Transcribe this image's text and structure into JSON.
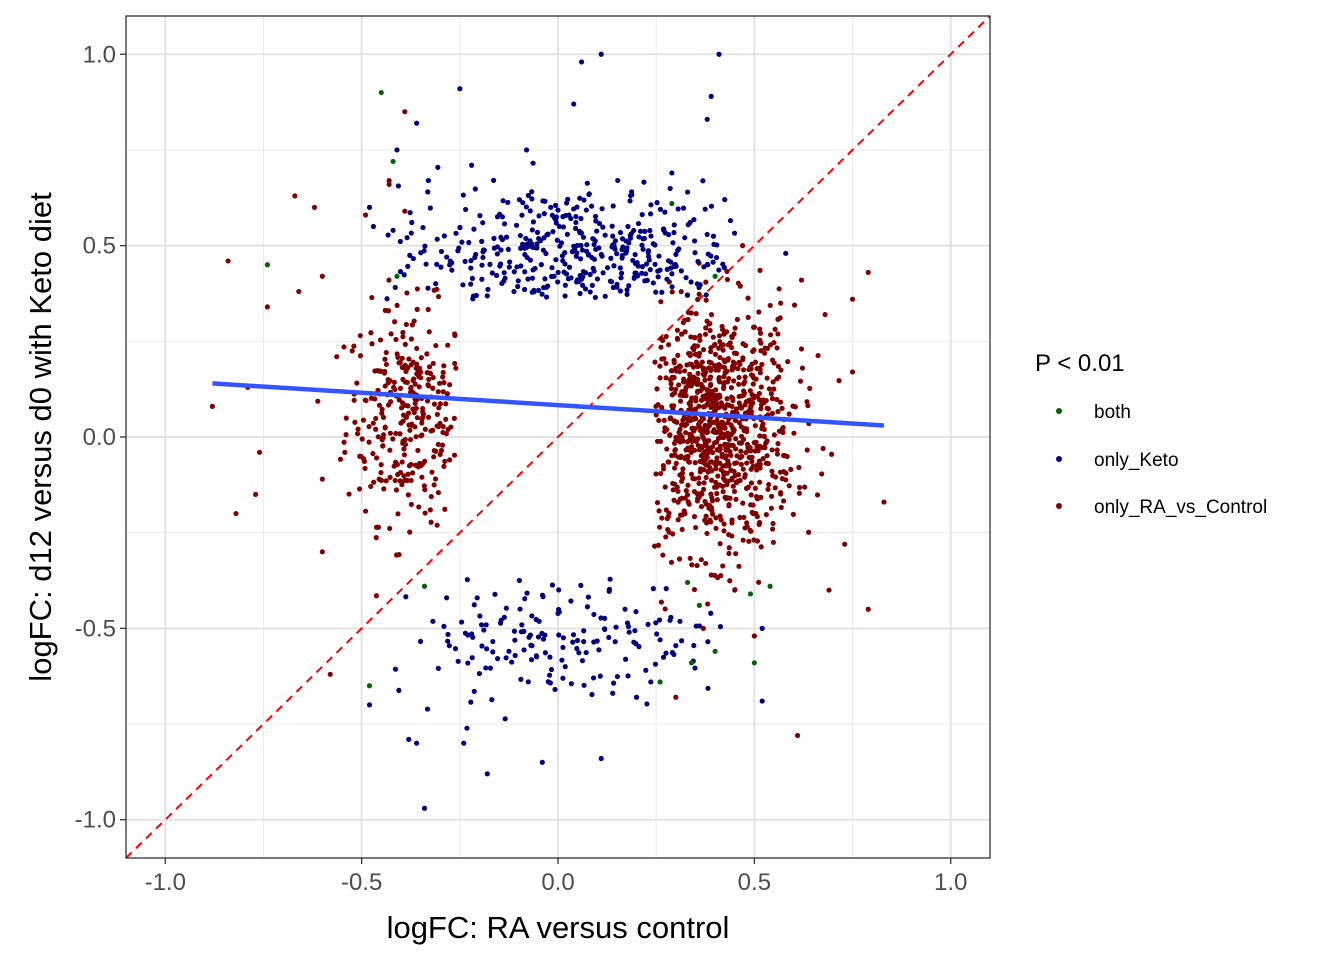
{
  "chart_data": {
    "type": "scatter",
    "xlabel": "logFC: RA versus control",
    "ylabel": "logFC: d12 versus d0 with Keto diet",
    "xlim": [
      -1.1,
      1.1
    ],
    "ylim": [
      -1.1,
      1.1
    ],
    "x_ticks": [
      -1.0,
      -0.5,
      0.0,
      0.5,
      1.0
    ],
    "y_ticks": [
      -1.0,
      -0.5,
      0.0,
      0.5,
      1.0
    ],
    "x_tick_labels": [
      "-1.0",
      "-0.5",
      "0.0",
      "0.5",
      "1.0"
    ],
    "y_tick_labels": [
      "-1.0",
      "-0.5",
      "0.0",
      "0.5",
      "1.0"
    ],
    "grid": true,
    "legend": {
      "title": "P < 0.01",
      "placement": "right",
      "entries": [
        {
          "name": "both",
          "color": "#006400"
        },
        {
          "name": "only_Keto",
          "color": "#000080"
        },
        {
          "name": "only_RA_vs_Control",
          "color": "#800000"
        }
      ]
    },
    "series": [
      {
        "name": "both",
        "color": "#006400",
        "points": [
          [
            -0.45,
            0.9
          ],
          [
            -0.42,
            0.72
          ],
          [
            -0.74,
            0.45
          ],
          [
            -0.41,
            0.42
          ],
          [
            0.29,
            0.61
          ],
          [
            0.4,
            0.42
          ],
          [
            -0.48,
            -0.65
          ],
          [
            -0.34,
            -0.39
          ],
          [
            0.33,
            -0.38
          ],
          [
            0.36,
            -0.44
          ],
          [
            0.54,
            -0.39
          ],
          [
            0.49,
            -0.41
          ],
          [
            0.34,
            -0.59
          ],
          [
            0.4,
            -0.56
          ],
          [
            0.5,
            -0.59
          ],
          [
            0.26,
            -0.64
          ]
        ]
      },
      {
        "name": "only_Keto",
        "cluster_top": {
          "center": [
            0.05,
            0.48
          ],
          "spread": [
            0.24,
            0.09
          ],
          "count": 420
        },
        "cluster_bottom": {
          "center": [
            0.0,
            -0.52
          ],
          "spread": [
            0.22,
            0.08
          ],
          "count": 170
        },
        "color": "#000080",
        "points": [
          [
            0.11,
            1.0
          ],
          [
            0.06,
            0.98
          ],
          [
            0.41,
            1.0
          ],
          [
            0.39,
            0.89
          ],
          [
            -0.25,
            0.91
          ],
          [
            0.38,
            0.83
          ],
          [
            0.04,
            0.87
          ],
          [
            -0.36,
            0.82
          ],
          [
            -0.41,
            0.75
          ],
          [
            -0.08,
            0.75
          ],
          [
            -0.33,
            0.67
          ],
          [
            -0.48,
            0.6
          ],
          [
            -0.47,
            0.55
          ],
          [
            -0.42,
            0.54
          ],
          [
            -0.22,
            0.71
          ],
          [
            0.29,
            0.69
          ],
          [
            0.33,
            0.64
          ],
          [
            0.58,
            0.48
          ],
          [
            -0.38,
            -0.79
          ],
          [
            -0.36,
            -0.8
          ],
          [
            -0.34,
            -0.97
          ],
          [
            -0.24,
            -0.8
          ],
          [
            -0.18,
            -0.88
          ],
          [
            -0.04,
            -0.85
          ],
          [
            0.11,
            -0.84
          ],
          [
            0.52,
            -0.69
          ],
          [
            0.26,
            -0.53
          ],
          [
            0.52,
            -0.5
          ],
          [
            -0.48,
            -0.7
          ],
          [
            0.2,
            -0.68
          ]
        ]
      },
      {
        "name": "only_RA_vs_Control",
        "cluster_left": {
          "center": [
            -0.38,
            0.06
          ],
          "spread": [
            0.08,
            0.14
          ],
          "count": 300
        },
        "cluster_right": {
          "center": [
            0.4,
            0.02
          ],
          "spread": [
            0.1,
            0.16
          ],
          "count": 950
        },
        "color": "#800000",
        "points": [
          [
            -0.84,
            0.46
          ],
          [
            -0.88,
            0.08
          ],
          [
            -0.79,
            0.13
          ],
          [
            -0.74,
            0.34
          ],
          [
            -0.77,
            -0.15
          ],
          [
            -0.82,
            -0.2
          ],
          [
            -0.76,
            -0.04
          ],
          [
            -0.67,
            0.63
          ],
          [
            -0.62,
            0.6
          ],
          [
            -0.66,
            0.38
          ],
          [
            -0.6,
            0.42
          ],
          [
            -0.6,
            -0.3
          ],
          [
            -0.6,
            -0.11
          ],
          [
            -0.58,
            -0.62
          ],
          [
            -0.43,
            0.67
          ],
          [
            -0.39,
            0.85
          ],
          [
            -0.43,
            0.66
          ],
          [
            -0.49,
            0.58
          ],
          [
            -0.39,
            0.59
          ],
          [
            0.79,
            0.43
          ],
          [
            0.75,
            0.36
          ],
          [
            0.79,
            -0.45
          ],
          [
            0.83,
            -0.17
          ],
          [
            0.73,
            -0.28
          ],
          [
            0.61,
            -0.78
          ],
          [
            0.69,
            -0.4
          ],
          [
            0.3,
            -0.68
          ],
          [
            0.37,
            -0.5
          ],
          [
            0.45,
            -0.4
          ],
          [
            0.62,
            0.41
          ],
          [
            0.68,
            0.32
          ],
          [
            0.62,
            0.23
          ],
          [
            0.47,
            0.5
          ],
          [
            0.5,
            -0.52
          ],
          [
            0.75,
            0.17
          ]
        ]
      }
    ],
    "identity_line": {
      "slope": 1,
      "intercept": 0,
      "color": "#ff0000",
      "style": "dashed"
    },
    "trend_line": {
      "x": [
        -0.88,
        0.83
      ],
      "y": [
        0.14,
        0.03
      ],
      "color": "#3355ff"
    }
  }
}
